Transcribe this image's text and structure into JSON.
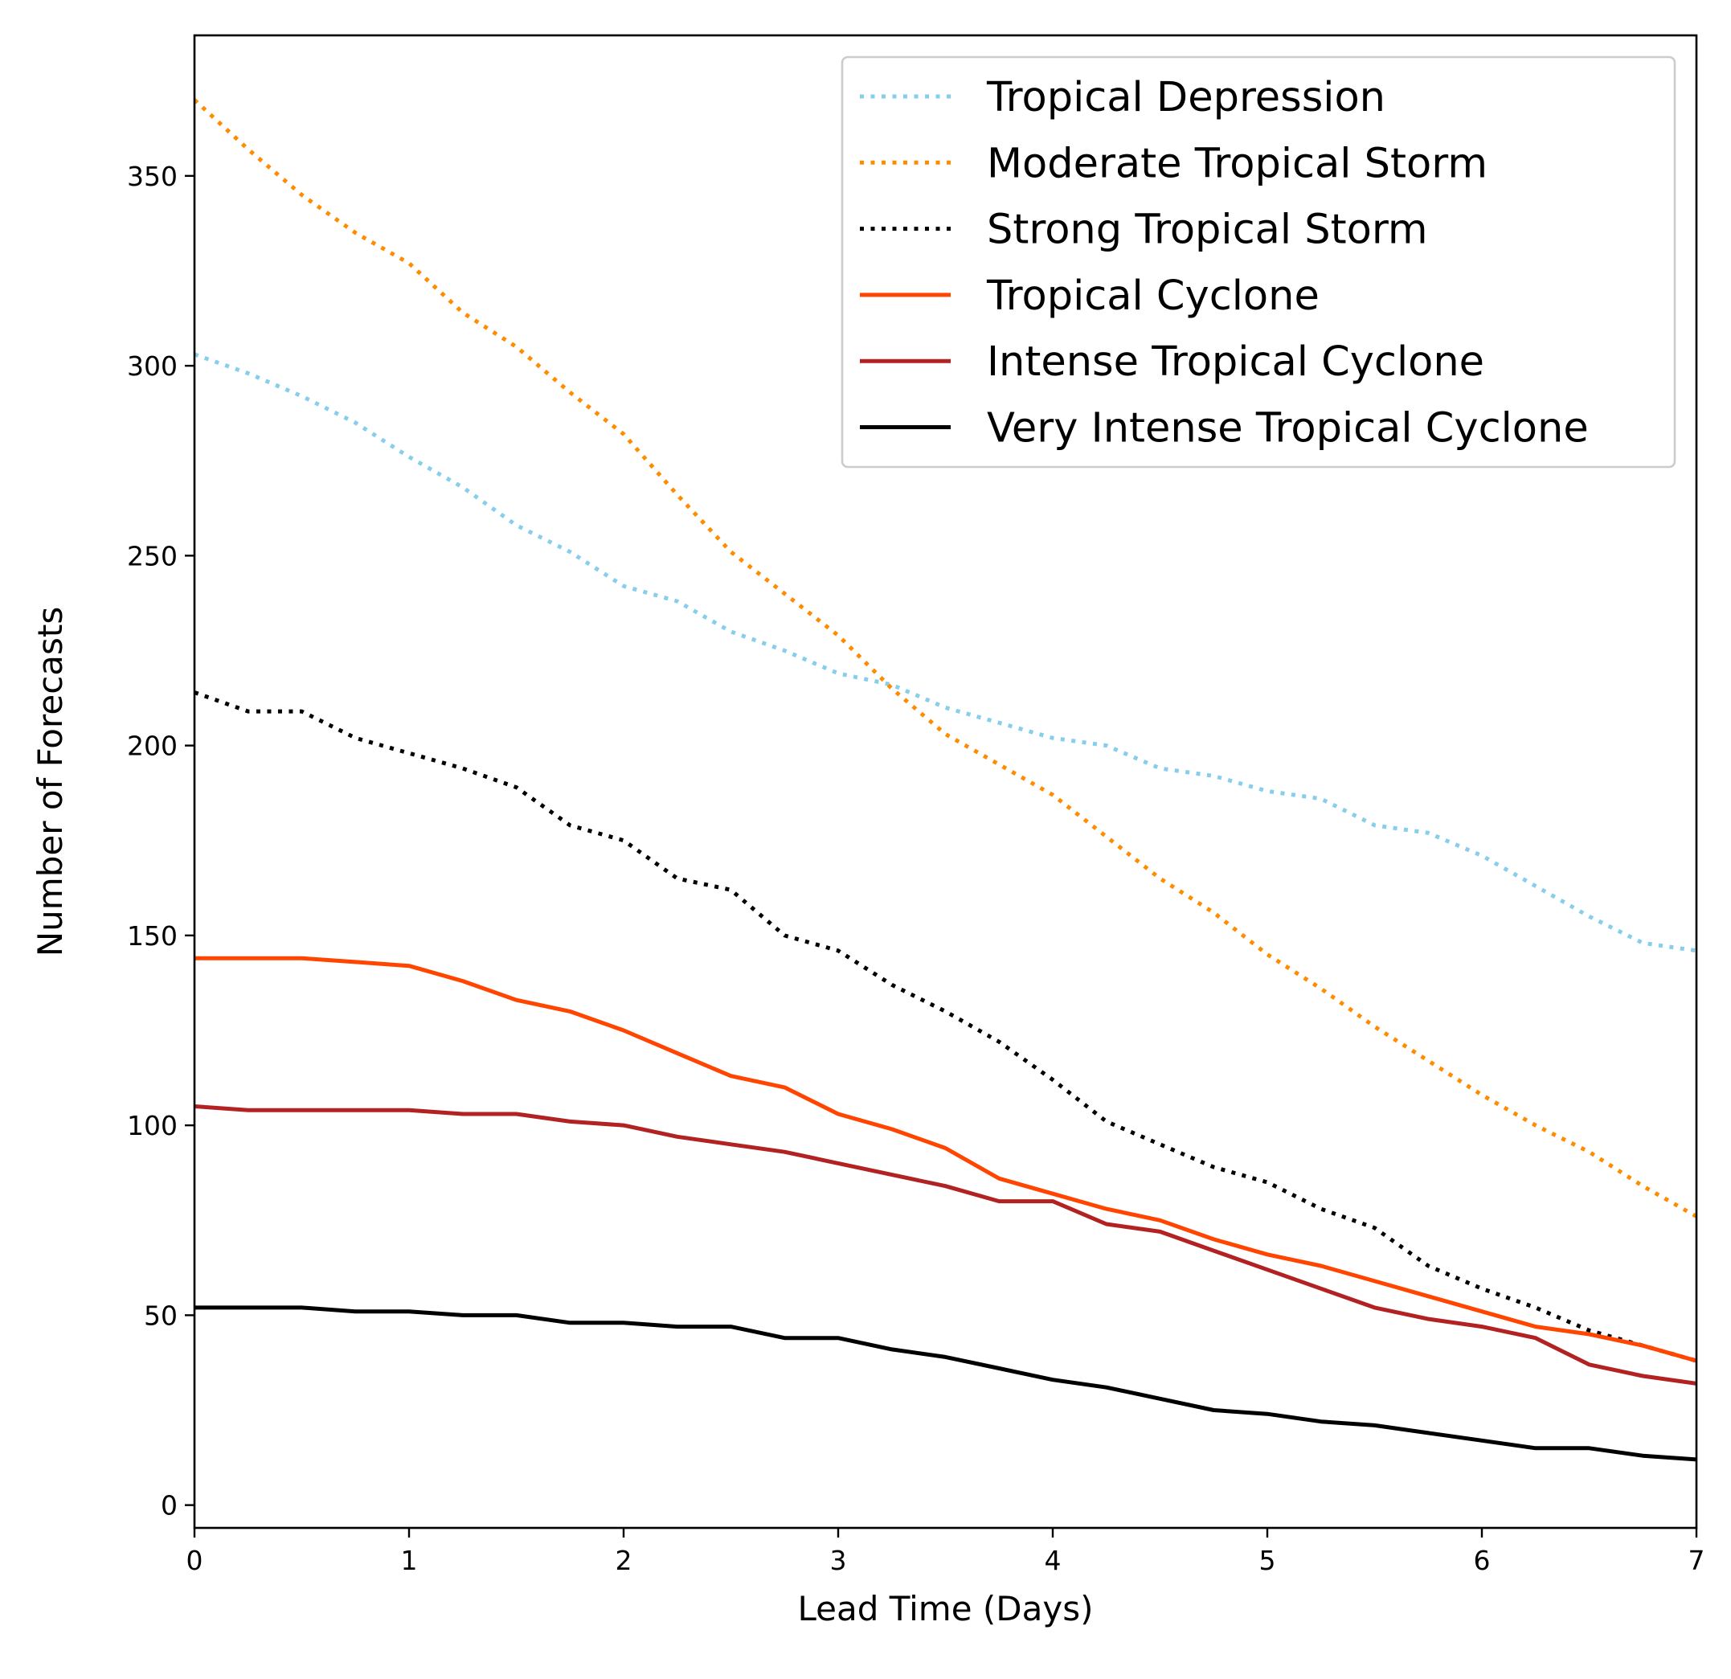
{
  "chart_data": {
    "type": "line",
    "title": "",
    "xlabel": "Lead Time (Days)",
    "ylabel": "Number of Forecasts",
    "xlim": [
      0,
      7
    ],
    "ylim": [
      -6,
      387
    ],
    "xticks": [
      0,
      1,
      2,
      3,
      4,
      5,
      6,
      7
    ],
    "xtick_labels": [
      "0",
      "1",
      "2",
      "3",
      "4",
      "5",
      "6",
      "7"
    ],
    "yticks": [
      0,
      50,
      100,
      150,
      200,
      250,
      300,
      350
    ],
    "ytick_labels": [
      "0",
      "50",
      "100",
      "150",
      "200",
      "250",
      "300",
      "350"
    ],
    "grid": false,
    "legend_position": "top-right",
    "x": [
      0,
      0.25,
      0.5,
      0.75,
      1,
      1.25,
      1.5,
      1.75,
      2,
      2.25,
      2.5,
      2.75,
      3,
      3.25,
      3.5,
      3.75,
      4,
      4.25,
      4.5,
      4.75,
      5,
      5.25,
      5.5,
      5.75,
      6,
      6.25,
      6.5,
      6.75,
      7
    ],
    "series": [
      {
        "name": "Tropical Depression",
        "color": "#87ceeb",
        "style": "dotted",
        "values": [
          303,
          298,
          292,
          285,
          276,
          268,
          258,
          251,
          242,
          238,
          230,
          225,
          219,
          216,
          210,
          206,
          202,
          200,
          194,
          192,
          188,
          186,
          179,
          177,
          171,
          163,
          155,
          148,
          146
        ]
      },
      {
        "name": "Moderate Tropical Storm",
        "color": "#ff8c00",
        "style": "dotted",
        "values": [
          370,
          357,
          345,
          335,
          327,
          314,
          305,
          293,
          282,
          266,
          251,
          240,
          229,
          215,
          203,
          195,
          187,
          176,
          165,
          156,
          145,
          136,
          126,
          117,
          108,
          100,
          93,
          84,
          76
        ]
      },
      {
        "name": "Strong Tropical Storm",
        "color": "#000000",
        "style": "dotted",
        "values": [
          214,
          209,
          209,
          202,
          198,
          194,
          189,
          179,
          175,
          165,
          162,
          150,
          146,
          137,
          130,
          122,
          112,
          101,
          95,
          89,
          85,
          78,
          73,
          63,
          57,
          52,
          46,
          42,
          38
        ]
      },
      {
        "name": "Tropical Cyclone",
        "color": "#ff4500",
        "style": "solid",
        "values": [
          144,
          144,
          144,
          143,
          142,
          138,
          133,
          130,
          125,
          119,
          113,
          110,
          103,
          99,
          94,
          86,
          82,
          78,
          75,
          70,
          66,
          63,
          59,
          55,
          51,
          47,
          45,
          42,
          38
        ]
      },
      {
        "name": "Intense Tropical Cyclone",
        "color": "#b22222",
        "style": "solid",
        "values": [
          105,
          104,
          104,
          104,
          104,
          103,
          103,
          101,
          100,
          97,
          95,
          93,
          90,
          87,
          84,
          80,
          80,
          74,
          72,
          67,
          62,
          57,
          52,
          49,
          47,
          44,
          37,
          34,
          32
        ]
      },
      {
        "name": "Very Intense Tropical Cyclone",
        "color": "#000000",
        "style": "solid",
        "values": [
          52,
          52,
          52,
          51,
          51,
          50,
          50,
          48,
          48,
          47,
          47,
          44,
          44,
          41,
          39,
          36,
          33,
          31,
          28,
          25,
          24,
          22,
          21,
          19,
          17,
          15,
          15,
          13,
          12
        ]
      }
    ]
  }
}
